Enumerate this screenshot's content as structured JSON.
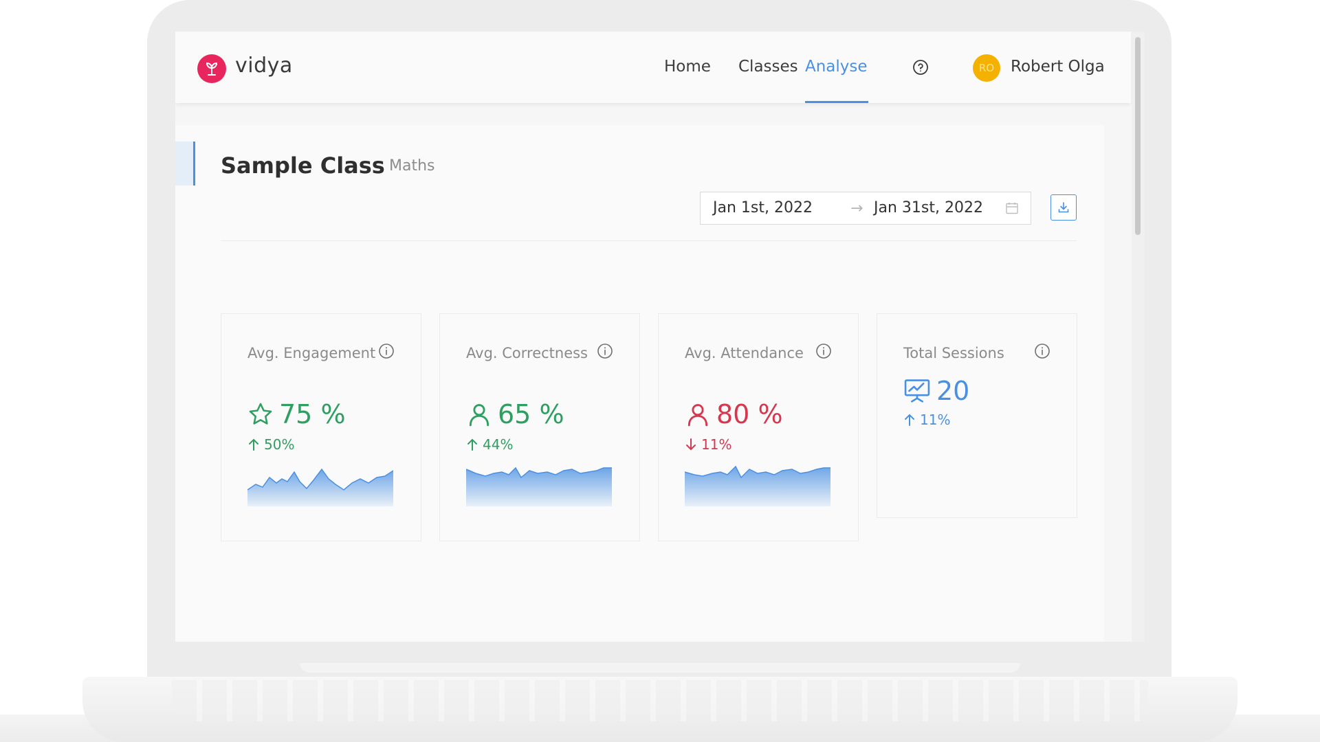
{
  "navbar": {
    "brand": "vidya",
    "links": [
      {
        "label": "Home",
        "active": false
      },
      {
        "label": "Classes",
        "active": false
      },
      {
        "label": "Analyse",
        "active": true
      }
    ],
    "user": {
      "initials": "RO",
      "name": "Robert Olga"
    }
  },
  "page": {
    "class_title": "Sample Class",
    "class_subject": "Maths",
    "date_range": {
      "start": "Jan 1st, 2022",
      "separator": "→",
      "end": "Jan 31st, 2022"
    }
  },
  "cards": [
    {
      "label": "Avg. Engagement",
      "icon": "star-icon",
      "value": "75",
      "unit": "%",
      "change": "50%",
      "trend": "up",
      "color": "#2f9e61"
    },
    {
      "label": "Avg. Correctness",
      "icon": "person-icon",
      "value": "65",
      "unit": "%",
      "change": "44%",
      "trend": "up",
      "color": "#2f9e61"
    },
    {
      "label": "Avg. Attendance",
      "icon": "person-icon",
      "value": "80",
      "unit": "%",
      "change": "11%",
      "trend": "down",
      "color": "#d6374f"
    },
    {
      "label": "Total Sessions",
      "icon": "presentation-chart-icon",
      "value": "20",
      "unit": "",
      "change": "11%",
      "trend": "up",
      "color": "#4a90e2"
    }
  ],
  "colors": {
    "accent": "#4a90e2",
    "brand": "#e8265e",
    "positive": "#2f9e61",
    "negative": "#d6374f",
    "avatar": "#f5b100"
  }
}
